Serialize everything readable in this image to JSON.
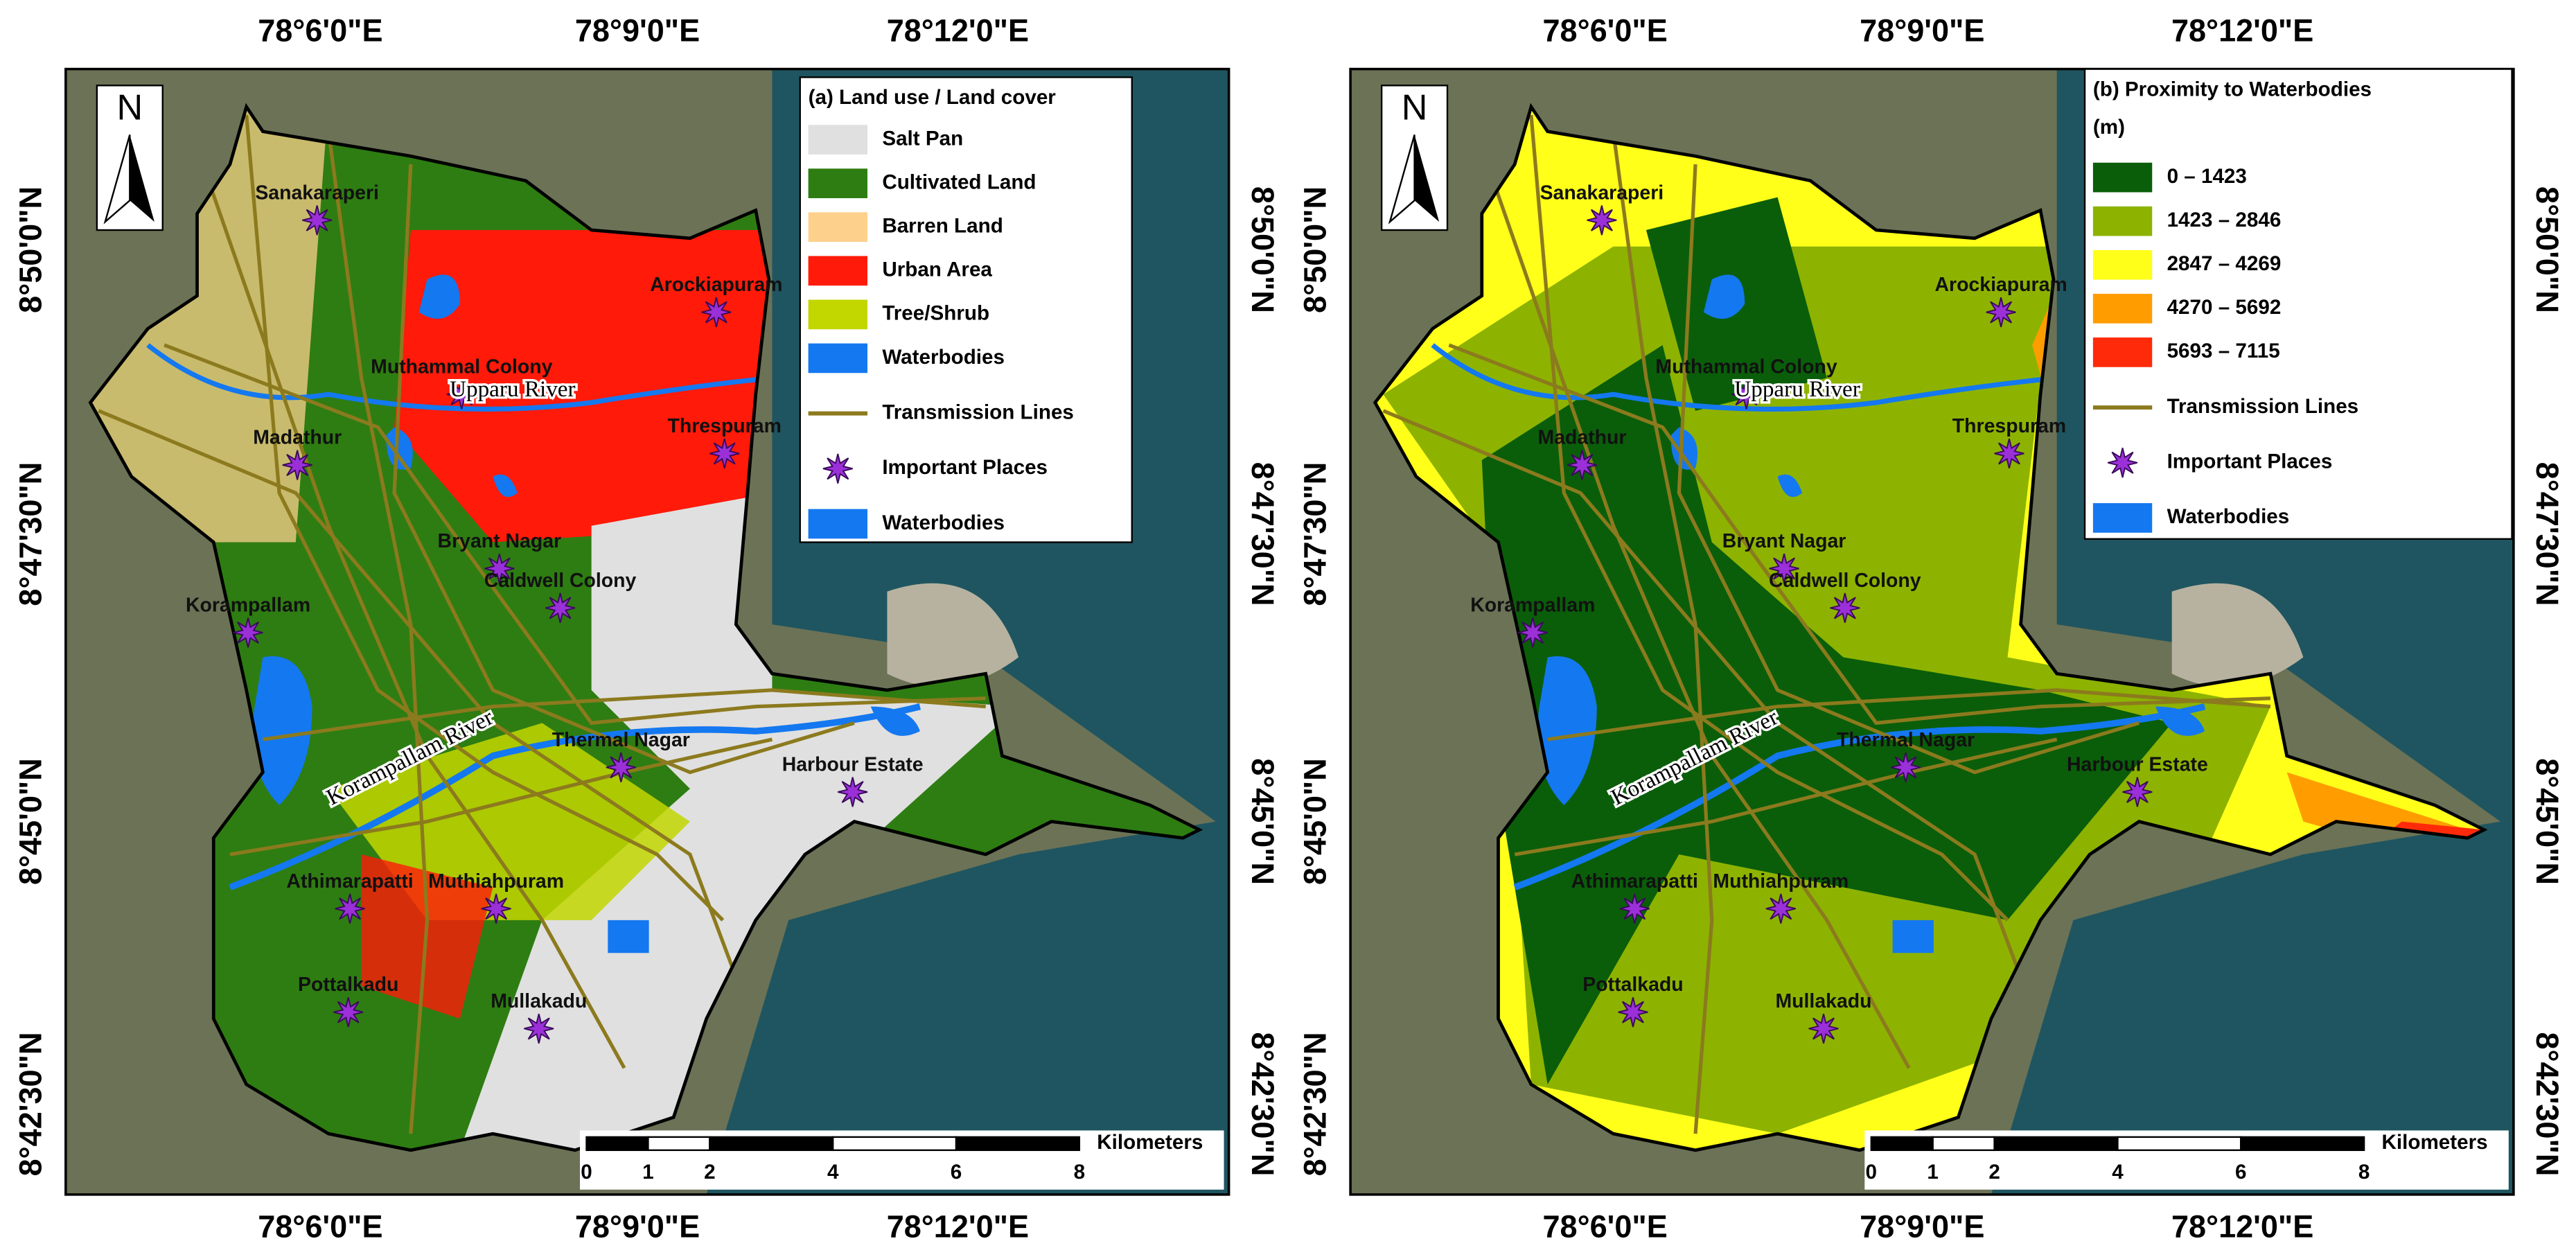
{
  "north": "N",
  "lon_labels": [
    "78°6'0\"E",
    "78°9'0\"E",
    "78°12'0\"E"
  ],
  "lat_labels": [
    "8°50'0\"N",
    "8°47'30\"N",
    "8°45'0\"N",
    "8°42'30\"N"
  ],
  "scale": {
    "unit": "Kilometers",
    "ticks": [
      0,
      1,
      2,
      4,
      6,
      8
    ]
  },
  "panels": [
    {
      "legend": {
        "title": "(a) Land use / Land cover",
        "items": [
          {
            "label": "Salt Pan",
            "color": "#e0e0e0",
            "symbol": "box"
          },
          {
            "label": "Cultivated Land",
            "color": "#2e7d12",
            "symbol": "box"
          },
          {
            "label": "Barren Land",
            "color": "#fdd08c",
            "symbol": "box"
          },
          {
            "label": "Urban Area",
            "color": "#ff1a0a",
            "symbol": "box"
          },
          {
            "label": "Tree/Shrub",
            "color": "#c2d600",
            "symbol": "box"
          },
          {
            "label": "Waterbodies",
            "color": "#1478f0",
            "symbol": "box"
          },
          {
            "label": "Transmission Lines",
            "color": "#8c7a1e",
            "symbol": "line"
          },
          {
            "label": "Important Places",
            "color": "#9b30d9",
            "symbol": "star"
          },
          {
            "label": "Waterbodies",
            "color": "#1478f0",
            "symbol": "box"
          }
        ]
      },
      "places": [
        "Sanakaraperi",
        "Arockiapuram",
        "Muthammal Colony",
        "Madathur",
        "Threspuram",
        "Bryant Nagar",
        "Caldwell Colony",
        "Korampallam",
        "Thermal Nagar",
        "Harbour Estate",
        "Athimarapatti",
        "Muthiahpuram",
        "Pottalkadu",
        "Mullakadu"
      ],
      "rivers": [
        "Upparu River",
        "Korampallam River"
      ]
    },
    {
      "legend": {
        "title": "(b) Proximity to Waterbodies",
        "subtitle": "(m)",
        "items": [
          {
            "label": "0 – 1423",
            "color": "#0a5e0a",
            "symbol": "box"
          },
          {
            "label": "1423 – 2846",
            "color": "#8db300",
            "symbol": "box"
          },
          {
            "label": "2847 – 4269",
            "color": "#ffff1a",
            "symbol": "box"
          },
          {
            "label": "4270 – 5692",
            "color": "#ff9d00",
            "symbol": "box"
          },
          {
            "label": "5693 – 7115",
            "color": "#ff2a0a",
            "symbol": "box"
          },
          {
            "label": "Transmission Lines",
            "color": "#8c7a1e",
            "symbol": "line"
          },
          {
            "label": "Important Places",
            "color": "#9b30d9",
            "symbol": "star"
          },
          {
            "label": "Waterbodies",
            "color": "#1478f0",
            "symbol": "box"
          }
        ]
      },
      "places": [
        "Sanakaraperi",
        "Arockiapuram",
        "Muthammal Colony",
        "Madathur",
        "Threspuram",
        "Bryant Nagar",
        "Caldwell Colony",
        "Korampallam",
        "Thermal Nagar",
        "Harbour Estate",
        "Athimarapatti",
        "Muthiahpuram",
        "Pottalkadu",
        "Mullakadu"
      ],
      "rivers": [
        "Upparu River",
        "Korampallam River"
      ]
    }
  ]
}
